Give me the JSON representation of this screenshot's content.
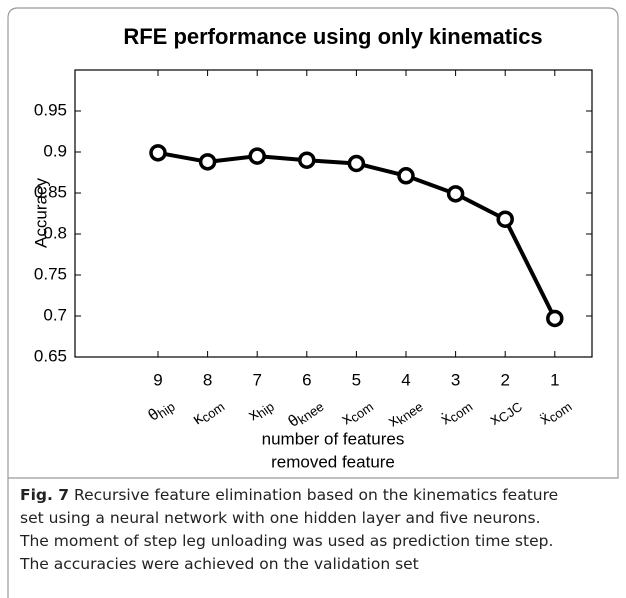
{
  "chart_data": {
    "type": "line",
    "title": "RFE performance using only kinematics",
    "categories": [
      "9",
      "8",
      "7",
      "6",
      "5",
      "4",
      "3",
      "2",
      "1"
    ],
    "features": [
      {
        "symbol": "θ",
        "sub": "hip"
      },
      {
        "symbol": "κ",
        "sub": "com"
      },
      {
        "symbol": "x",
        "sub": "hip"
      },
      {
        "symbol": "θ",
        "sub": "knee"
      },
      {
        "symbol": "x",
        "sub": "com"
      },
      {
        "symbol": "x",
        "sub": "knee"
      },
      {
        "symbol": "ẋ",
        "sub": "com"
      },
      {
        "symbol": "x",
        "sub": "CJC"
      },
      {
        "symbol": "ẍ",
        "sub": "com"
      }
    ],
    "values": [
      0.899,
      0.888,
      0.895,
      0.89,
      0.886,
      0.871,
      0.849,
      0.818,
      0.697
    ],
    "color": "#000000",
    "ylabel": "Accuracy",
    "xlabel": "number of features",
    "xlabel2": "removed feature",
    "ylim": [
      0.65,
      1.0
    ],
    "yticks": [
      0.65,
      0.7,
      0.75,
      0.8,
      0.85,
      0.9,
      0.95
    ]
  },
  "caption": {
    "label": "Fig. 7",
    "lines": [
      "Recursive feature elimination based on the kinematics feature",
      "set using a neural network with one hidden layer and five neurons.",
      "The moment of step leg unloading was used as prediction time step.",
      "The accuracies were achieved on the validation set"
    ]
  }
}
